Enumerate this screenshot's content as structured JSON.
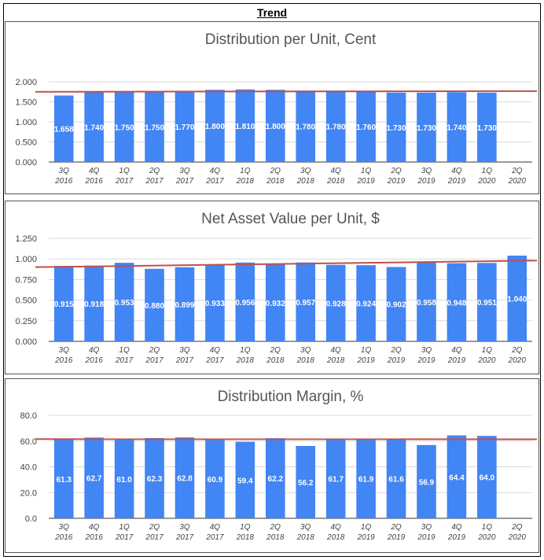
{
  "page_title": "Trend",
  "colors": {
    "bar": "#4285f4",
    "trend": "#c0504d",
    "grid": "#d9d9d9",
    "text": "#444444"
  },
  "x_labels": [
    [
      "3Q",
      "2016"
    ],
    [
      "4Q",
      "2016"
    ],
    [
      "1Q",
      "2017"
    ],
    [
      "2Q",
      "2017"
    ],
    [
      "3Q",
      "2017"
    ],
    [
      "4Q",
      "2017"
    ],
    [
      "1Q",
      "2018"
    ],
    [
      "2Q",
      "2018"
    ],
    [
      "3Q",
      "2018"
    ],
    [
      "4Q",
      "2018"
    ],
    [
      "1Q",
      "2019"
    ],
    [
      "2Q",
      "2019"
    ],
    [
      "3Q",
      "2019"
    ],
    [
      "4Q",
      "2019"
    ],
    [
      "1Q",
      "2020"
    ],
    [
      "2Q",
      "2020"
    ]
  ],
  "chart_data": [
    {
      "type": "bar",
      "title": "Distribution per Unit, Cent",
      "categories": [
        "3Q 2016",
        "4Q 2016",
        "1Q 2017",
        "2Q 2017",
        "3Q 2017",
        "4Q 2017",
        "1Q 2018",
        "2Q 2018",
        "3Q 2018",
        "4Q 2018",
        "1Q 2019",
        "2Q 2019",
        "3Q 2019",
        "4Q 2019",
        "1Q 2020",
        "2Q 2020"
      ],
      "values": [
        1.658,
        1.74,
        1.75,
        1.75,
        1.77,
        1.8,
        1.81,
        1.8,
        1.78,
        1.78,
        1.76,
        1.73,
        1.73,
        1.74,
        1.73,
        null
      ],
      "value_labels": [
        "1.658",
        "1.740",
        "1.750",
        "1.750",
        "1.770",
        "1.800",
        "1.810",
        "1.800",
        "1.780",
        "1.780",
        "1.760",
        "1.730",
        "1.730",
        "1.740",
        "1.730",
        ""
      ],
      "ylim": [
        0,
        2.0
      ],
      "yticks": [
        "0.000",
        "0.500",
        "1.000",
        "1.500",
        "2.000"
      ],
      "trend": [
        1.751,
        1.768
      ],
      "legend": "none"
    },
    {
      "type": "bar",
      "title": "Net Asset Value per Unit, $",
      "categories": [
        "3Q 2016",
        "4Q 2016",
        "1Q 2017",
        "2Q 2017",
        "3Q 2017",
        "4Q 2017",
        "1Q 2018",
        "2Q 2018",
        "3Q 2018",
        "4Q 2018",
        "1Q 2019",
        "2Q 2019",
        "3Q 2019",
        "4Q 2019",
        "1Q 2020",
        "2Q 2020"
      ],
      "values": [
        0.915,
        0.918,
        0.953,
        0.88,
        0.899,
        0.933,
        0.956,
        0.932,
        0.957,
        0.928,
        0.924,
        0.902,
        0.958,
        0.948,
        0.951,
        1.04
      ],
      "value_labels": [
        "0.915",
        "0.918",
        "0.953",
        "0.880",
        "0.899",
        "0.933",
        "0.956",
        "0.932",
        "0.957",
        "0.928",
        "0.924",
        "0.902",
        "0.958",
        "0.948",
        "0.951",
        "1.040"
      ],
      "ylim": [
        0,
        1.25
      ],
      "yticks": [
        "0.000",
        "0.250",
        "0.500",
        "0.750",
        "1.000",
        "1.250"
      ],
      "trend": [
        0.9,
        0.98
      ],
      "legend": "none"
    },
    {
      "type": "bar",
      "title": "Distribution Margin, %",
      "categories": [
        "3Q 2016",
        "4Q 2016",
        "1Q 2017",
        "2Q 2017",
        "3Q 2017",
        "4Q 2017",
        "1Q 2018",
        "2Q 2018",
        "3Q 2018",
        "4Q 2018",
        "1Q 2019",
        "2Q 2019",
        "3Q 2019",
        "4Q 2019",
        "1Q 2020",
        "2Q 2020"
      ],
      "values": [
        61.3,
        62.7,
        61.0,
        62.3,
        62.8,
        60.9,
        59.4,
        62.2,
        56.2,
        61.7,
        61.9,
        61.6,
        56.9,
        64.4,
        64.0,
        null
      ],
      "value_labels": [
        "61.3",
        "62.7",
        "61.0",
        "62.3",
        "62.8",
        "60.9",
        "59.4",
        "62.2",
        "56.2",
        "61.7",
        "61.9",
        "61.6",
        "56.9",
        "64.4",
        "64.0",
        ""
      ],
      "ylim": [
        0,
        80
      ],
      "yticks": [
        "0.0",
        "20.0",
        "40.0",
        "60.0",
        "80.0"
      ],
      "trend": [
        61.5,
        61.4
      ],
      "legend": "none"
    }
  ]
}
